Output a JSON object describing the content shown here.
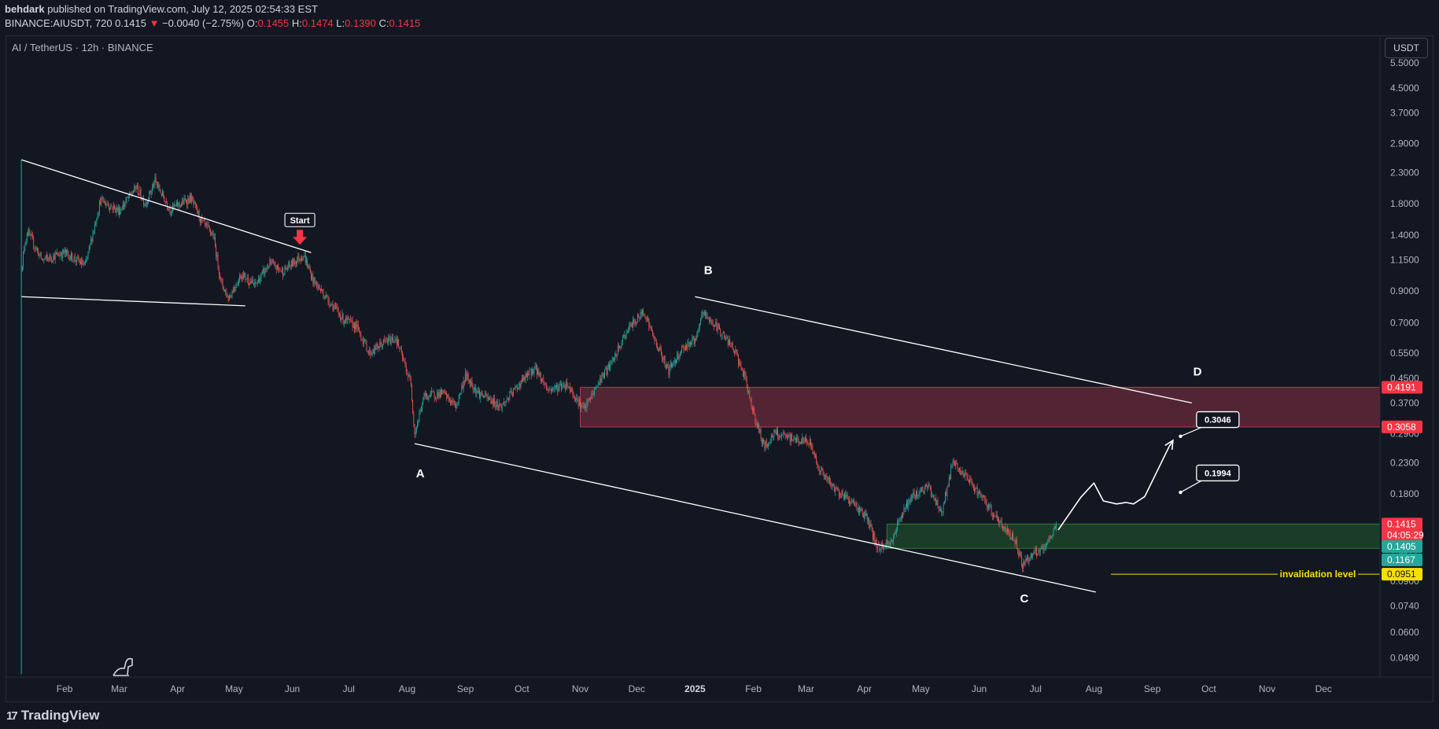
{
  "header": {
    "publisher": "behdark",
    "published_text": " published on TradingView.com, July 12, 2025 02:54:33 EST",
    "symbol_interval": "BINANCE:AIUSDT, 720",
    "last": "0.1415",
    "change_arrow": "▼",
    "change": "−0.0040 (−2.75%)",
    "ohlc": [
      {
        "label": "O:",
        "value": "0.1455"
      },
      {
        "label": "H:",
        "value": "0.1474"
      },
      {
        "label": "L:",
        "value": "0.1390"
      },
      {
        "label": "C:",
        "value": "0.1415"
      }
    ]
  },
  "legend": {
    "symbol": "AI / TetherUS · 12h · BINANCE"
  },
  "currency_button": "USDT",
  "branding": {
    "logo_text": "TradingView",
    "logo_mark": "17"
  },
  "colors": {
    "background": "#131722",
    "up": "#26a69a",
    "down": "#ef5350",
    "annotation": "#ffffff",
    "resistance_zone": "#6a2b3b",
    "support_zone": "#1f4a2c",
    "invalidation": "#f7e000",
    "start_arrow": "#f23645",
    "price_tag_red": "#f23645",
    "price_tag_green": "#26a69a"
  },
  "chart_data": {
    "type": "candlestick",
    "y_scale": "log",
    "ylim": [
      0.042,
      6.8
    ],
    "x_start": "2024-01-01",
    "x_end": "2025-12-31",
    "y_ticks": [
      "5.5000",
      "4.5000",
      "3.7000",
      "2.9000",
      "2.3000",
      "1.8000",
      "1.4000",
      "1.1500",
      "0.9000",
      "0.7000",
      "0.5500",
      "0.4500",
      "0.3700",
      "0.2900",
      "0.2300",
      "0.1800",
      "0.1400",
      "0.1150",
      "0.0900",
      "0.0740",
      "0.0600",
      "0.0490"
    ],
    "x_ticks": [
      {
        "label": "Feb",
        "date": "2024-02-01"
      },
      {
        "label": "Mar",
        "date": "2024-03-01"
      },
      {
        "label": "Apr",
        "date": "2024-04-01"
      },
      {
        "label": "May",
        "date": "2024-05-01"
      },
      {
        "label": "Jun",
        "date": "2024-06-01"
      },
      {
        "label": "Jul",
        "date": "2024-07-01"
      },
      {
        "label": "Aug",
        "date": "2024-08-01"
      },
      {
        "label": "Sep",
        "date": "2024-09-01"
      },
      {
        "label": "Oct",
        "date": "2024-10-01"
      },
      {
        "label": "Nov",
        "date": "2024-11-01"
      },
      {
        "label": "Dec",
        "date": "2024-12-01"
      },
      {
        "label": "2025",
        "date": "2025-01-01",
        "bold": true
      },
      {
        "label": "Feb",
        "date": "2025-02-01"
      },
      {
        "label": "Mar",
        "date": "2025-03-01"
      },
      {
        "label": "Apr",
        "date": "2025-04-01"
      },
      {
        "label": "May",
        "date": "2025-05-01"
      },
      {
        "label": "Jun",
        "date": "2025-06-01"
      },
      {
        "label": "Jul",
        "date": "2025-07-01"
      },
      {
        "label": "Aug",
        "date": "2025-08-01"
      },
      {
        "label": "Sep",
        "date": "2025-09-01"
      },
      {
        "label": "Oct",
        "date": "2025-10-01"
      },
      {
        "label": "Nov",
        "date": "2025-11-01"
      },
      {
        "label": "Dec",
        "date": "2025-12-01"
      }
    ],
    "price_path": [
      [
        "2024-01-09",
        1.08
      ],
      [
        "2024-01-12",
        1.45
      ],
      [
        "2024-01-20",
        1.15
      ],
      [
        "2024-02-01",
        1.22
      ],
      [
        "2024-02-12",
        1.1
      ],
      [
        "2024-02-20",
        1.85
      ],
      [
        "2024-03-01",
        1.7
      ],
      [
        "2024-03-10",
        2.05
      ],
      [
        "2024-03-15",
        1.8
      ],
      [
        "2024-03-20",
        2.15
      ],
      [
        "2024-03-28",
        1.72
      ],
      [
        "2024-04-08",
        1.88
      ],
      [
        "2024-04-14",
        1.55
      ],
      [
        "2024-04-20",
        1.4
      ],
      [
        "2024-04-24",
        0.97
      ],
      [
        "2024-04-28",
        0.85
      ],
      [
        "2024-05-05",
        1.03
      ],
      [
        "2024-05-12",
        0.94
      ],
      [
        "2024-05-20",
        1.12
      ],
      [
        "2024-05-27",
        1.05
      ],
      [
        "2024-06-03",
        1.15
      ],
      [
        "2024-06-07",
        1.2
      ],
      [
        "2024-06-12",
        0.98
      ],
      [
        "2024-06-20",
        0.84
      ],
      [
        "2024-06-28",
        0.72
      ],
      [
        "2024-07-05",
        0.68
      ],
      [
        "2024-07-12",
        0.55
      ],
      [
        "2024-07-20",
        0.6
      ],
      [
        "2024-07-26",
        0.62
      ],
      [
        "2024-08-03",
        0.43
      ],
      [
        "2024-08-05",
        0.29
      ],
      [
        "2024-08-10",
        0.39
      ],
      [
        "2024-08-20",
        0.4
      ],
      [
        "2024-08-27",
        0.36
      ],
      [
        "2024-09-01",
        0.46
      ],
      [
        "2024-09-08",
        0.4
      ],
      [
        "2024-09-20",
        0.36
      ],
      [
        "2024-10-01",
        0.44
      ],
      [
        "2024-10-08",
        0.49
      ],
      [
        "2024-10-15",
        0.41
      ],
      [
        "2024-10-25",
        0.43
      ],
      [
        "2024-11-03",
        0.35
      ],
      [
        "2024-11-12",
        0.45
      ],
      [
        "2024-11-18",
        0.51
      ],
      [
        "2024-11-26",
        0.66
      ],
      [
        "2024-12-05",
        0.77
      ],
      [
        "2024-12-10",
        0.62
      ],
      [
        "2024-12-18",
        0.48
      ],
      [
        "2024-12-25",
        0.57
      ],
      [
        "2025-01-02",
        0.62
      ],
      [
        "2025-01-05",
        0.76
      ],
      [
        "2025-01-14",
        0.66
      ],
      [
        "2025-01-22",
        0.56
      ],
      [
        "2025-01-27",
        0.46
      ],
      [
        "2025-02-03",
        0.31
      ],
      [
        "2025-02-07",
        0.26
      ],
      [
        "2025-02-12",
        0.29
      ],
      [
        "2025-02-20",
        0.28
      ],
      [
        "2025-03-03",
        0.27
      ],
      [
        "2025-03-08",
        0.22
      ],
      [
        "2025-03-15",
        0.19
      ],
      [
        "2025-03-25",
        0.17
      ],
      [
        "2025-04-02",
        0.15
      ],
      [
        "2025-04-08",
        0.117
      ],
      [
        "2025-04-15",
        0.122
      ],
      [
        "2025-04-22",
        0.16
      ],
      [
        "2025-04-28",
        0.18
      ],
      [
        "2025-05-05",
        0.19
      ],
      [
        "2025-05-12",
        0.155
      ],
      [
        "2025-05-18",
        0.23
      ],
      [
        "2025-05-28",
        0.195
      ],
      [
        "2025-06-05",
        0.165
      ],
      [
        "2025-06-13",
        0.14
      ],
      [
        "2025-06-20",
        0.125
      ],
      [
        "2025-06-24",
        0.103
      ],
      [
        "2025-06-30",
        0.112
      ],
      [
        "2025-07-06",
        0.116
      ],
      [
        "2025-07-10",
        0.133
      ],
      [
        "2025-07-12",
        0.1415
      ]
    ],
    "trendlines": [
      {
        "from": [
          "2024-01-09",
          2.55
        ],
        "to": [
          "2024-06-11",
          1.22
        ]
      },
      {
        "from": [
          "2024-01-09",
          0.86
        ],
        "to": [
          "2024-05-07",
          0.8
        ]
      },
      {
        "from": [
          "2024-08-05",
          0.268
        ],
        "to": [
          "2025-08-02",
          0.0825
        ]
      },
      {
        "from": [
          "2025-01-01",
          0.86
        ],
        "to": [
          "2025-09-22",
          0.37
        ]
      },
      {
        "from": [
          "2024-01-09",
          2.55
        ],
        "to": [
          "2024-01-09",
          0.043
        ],
        "color": "#26a69a",
        "width": 1
      }
    ],
    "projection": [
      [
        "2025-07-13",
        0.135
      ],
      [
        "2025-07-25",
        0.175
      ],
      [
        "2025-08-01",
        0.196
      ],
      [
        "2025-08-06",
        0.17
      ],
      [
        "2025-08-13",
        0.166
      ],
      [
        "2025-08-18",
        0.168
      ],
      [
        "2025-08-22",
        0.166
      ],
      [
        "2025-08-28",
        0.176
      ],
      [
        "2025-09-10",
        0.262
      ]
    ],
    "projection_arrow_tip": [
      "2025-09-12",
      0.275
    ],
    "zones": [
      {
        "name": "resistance",
        "from": "2024-11-01",
        "to": "2025-12-31",
        "top": 0.4191,
        "bottom": 0.3058
      },
      {
        "name": "support",
        "from": "2025-04-13",
        "to": "2025-12-31",
        "top": 0.1415,
        "bottom": 0.1167
      }
    ],
    "invalidation": {
      "value": 0.0951,
      "from": "2025-08-10",
      "to": "2025-12-31",
      "label": "invalidation level"
    },
    "wave_labels": [
      {
        "text": "A",
        "date": "2024-08-08",
        "value": 0.205
      },
      {
        "text": "B",
        "date": "2025-01-08",
        "value": 1.03
      },
      {
        "text": "C",
        "date": "2025-06-25",
        "value": 0.076
      },
      {
        "text": "D",
        "date": "2025-09-25",
        "value": 0.46
      }
    ],
    "callouts": [
      {
        "text": "0.3046",
        "date": "2025-09-22",
        "value": 0.3046,
        "tip_date": "2025-09-16",
        "tip_value": 0.284
      },
      {
        "text": "0.1994",
        "date": "2025-09-22",
        "value": 0.1994,
        "tip_date": "2025-09-16",
        "tip_value": 0.182
      }
    ],
    "start_marker": {
      "text": "Start",
      "date": "2024-06-05",
      "value": 1.22
    },
    "price_tags": [
      {
        "value": 0.4191,
        "text": "0.4191",
        "color": "#f23645"
      },
      {
        "value": 0.3058,
        "text": "0.3058",
        "color": "#f23645"
      },
      {
        "value": 0.1415,
        "text": "0.1415",
        "sub": "04:05:29",
        "color": "#f23645"
      },
      {
        "value": 0.1405,
        "text": "0.1405",
        "color": "#26a69a"
      },
      {
        "value": 0.1167,
        "text": "0.1167",
        "color": "#26a69a"
      },
      {
        "value": 0.0951,
        "text": "0.0951",
        "color": "#f7e000",
        "text_color": "#131722"
      }
    ]
  }
}
